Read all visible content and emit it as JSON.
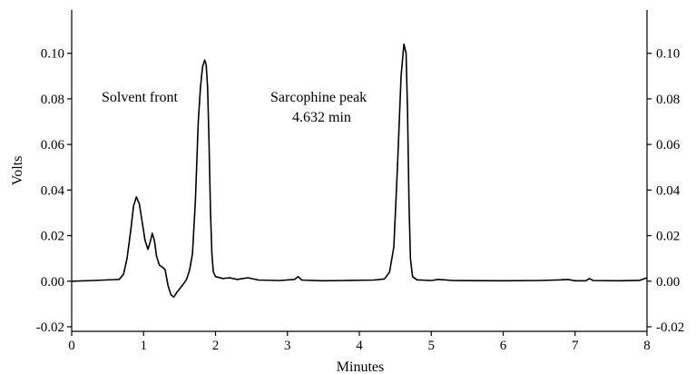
{
  "chart_data": {
    "type": "line",
    "title": "",
    "xlabel": "Minutes",
    "ylabel": "Volts",
    "xlim": [
      0,
      8
    ],
    "ylim": [
      -0.022,
      0.119
    ],
    "x_ticks": [
      0,
      1,
      2,
      3,
      4,
      5,
      6,
      7,
      8
    ],
    "x_tick_labels": [
      "0",
      "1",
      "2",
      "3",
      "4",
      "5",
      "6",
      "7",
      "8"
    ],
    "y_ticks": [
      -0.02,
      0.0,
      0.02,
      0.04,
      0.06,
      0.08,
      0.1
    ],
    "y_tick_labels_left": [
      "-0.02",
      "0.00",
      "0.02",
      "0.04",
      "0.06",
      "0.08",
      "0.10"
    ],
    "y_tick_labels_right": [
      "-0.02",
      "0.00",
      "0.02",
      "0.04",
      "0.06",
      "0.08",
      "0.10"
    ],
    "grid": false,
    "annotations": {
      "solvent_front": "Solvent front",
      "sarcophine_peak": "Sarcophine peak",
      "sarcophine_time": "4.632 min"
    },
    "series": [
      {
        "color": "#000000",
        "points": [
          [
            0.0,
            0.0
          ],
          [
            0.3,
            0.0003
          ],
          [
            0.6,
            0.0007
          ],
          [
            0.66,
            0.0008
          ],
          [
            0.72,
            0.003
          ],
          [
            0.77,
            0.01
          ],
          [
            0.82,
            0.022
          ],
          [
            0.86,
            0.033
          ],
          [
            0.9,
            0.037
          ],
          [
            0.94,
            0.034
          ],
          [
            0.98,
            0.026
          ],
          [
            1.02,
            0.018
          ],
          [
            1.06,
            0.014
          ],
          [
            1.09,
            0.017
          ],
          [
            1.12,
            0.021
          ],
          [
            1.15,
            0.018
          ],
          [
            1.18,
            0.011
          ],
          [
            1.22,
            0.007
          ],
          [
            1.27,
            0.006
          ],
          [
            1.3,
            0.005
          ],
          [
            1.34,
            -0.002
          ],
          [
            1.38,
            -0.006
          ],
          [
            1.42,
            -0.007
          ],
          [
            1.46,
            -0.005
          ],
          [
            1.51,
            -0.003
          ],
          [
            1.56,
            -0.001
          ],
          [
            1.6,
            0.001
          ],
          [
            1.64,
            0.005
          ],
          [
            1.68,
            0.012
          ],
          [
            1.72,
            0.035
          ],
          [
            1.76,
            0.07
          ],
          [
            1.79,
            0.085
          ],
          [
            1.82,
            0.094
          ],
          [
            1.85,
            0.097
          ],
          [
            1.87,
            0.095
          ],
          [
            1.89,
            0.085
          ],
          [
            1.91,
            0.06
          ],
          [
            1.93,
            0.03
          ],
          [
            1.95,
            0.012
          ],
          [
            1.97,
            0.004
          ],
          [
            2.0,
            0.002
          ],
          [
            2.1,
            0.0012
          ],
          [
            2.2,
            0.0015
          ],
          [
            2.3,
            0.0008
          ],
          [
            2.45,
            0.0015
          ],
          [
            2.6,
            0.0005
          ],
          [
            2.9,
            0.0003
          ],
          [
            3.1,
            0.0008
          ],
          [
            3.15,
            0.002
          ],
          [
            3.2,
            0.0005
          ],
          [
            3.5,
            0.0002
          ],
          [
            3.8,
            0.0003
          ],
          [
            4.2,
            0.0005
          ],
          [
            4.35,
            0.001
          ],
          [
            4.42,
            0.004
          ],
          [
            4.48,
            0.015
          ],
          [
            4.53,
            0.05
          ],
          [
            4.58,
            0.09
          ],
          [
            4.62,
            0.104
          ],
          [
            4.65,
            0.1
          ],
          [
            4.67,
            0.075
          ],
          [
            4.69,
            0.035
          ],
          [
            4.71,
            0.01
          ],
          [
            4.74,
            0.002
          ],
          [
            4.8,
            0.0006
          ],
          [
            5.0,
            0.0003
          ],
          [
            5.1,
            0.0008
          ],
          [
            5.3,
            0.0003
          ],
          [
            6.0,
            0.0002
          ],
          [
            6.5,
            0.0003
          ],
          [
            6.8,
            0.0006
          ],
          [
            6.9,
            0.0008
          ],
          [
            7.0,
            0.0002
          ],
          [
            7.15,
            0.0002
          ],
          [
            7.2,
            0.0012
          ],
          [
            7.25,
            0.0003
          ],
          [
            7.6,
            0.0002
          ],
          [
            7.9,
            0.0004
          ],
          [
            8.0,
            0.0015
          ]
        ]
      }
    ]
  }
}
